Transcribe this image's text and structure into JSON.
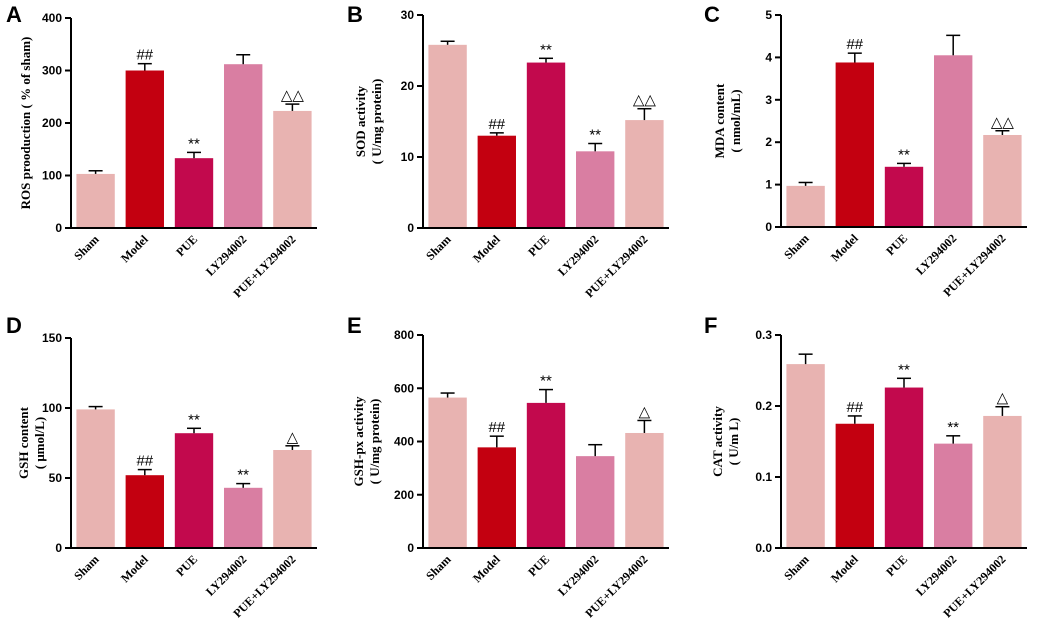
{
  "figure": {
    "categories": [
      "Sham",
      "Model",
      "PUE",
      "LY294002",
      "PUE+LY294002"
    ],
    "colors": [
      "#e8b3b1",
      "#c30010",
      "#c2094d",
      "#d97ea2",
      "#e8b3b1"
    ]
  },
  "chart_data": [
    {
      "panel": "A",
      "type": "bar",
      "ylabel": [
        "ROS prooduction ( % of sham)"
      ],
      "ylim": [
        0,
        400
      ],
      "yticks": [
        0,
        100,
        200,
        300,
        400
      ],
      "values": [
        103,
        300,
        133,
        312,
        223
      ],
      "errors": [
        6,
        13,
        11,
        18,
        13
      ],
      "annotations": [
        "",
        "##",
        "**",
        "",
        "△△"
      ]
    },
    {
      "panel": "B",
      "type": "bar",
      "ylabel": [
        "SOD activity",
        "( U/mg protein)"
      ],
      "ylim": [
        0,
        30
      ],
      "yticks": [
        0,
        10,
        20,
        30
      ],
      "values": [
        25.8,
        13.0,
        23.3,
        10.8,
        15.2
      ],
      "errors": [
        0.5,
        0.4,
        0.6,
        1.1,
        1.6
      ],
      "annotations": [
        "",
        "##",
        "**",
        "**",
        "△△"
      ]
    },
    {
      "panel": "C",
      "type": "bar",
      "ylabel": [
        "MDA content",
        "( nmol/mL)"
      ],
      "ylim": [
        0,
        5
      ],
      "yticks": [
        0,
        1,
        2,
        3,
        4,
        5
      ],
      "values": [
        0.97,
        3.88,
        1.42,
        4.05,
        2.17
      ],
      "errors": [
        0.08,
        0.22,
        0.08,
        0.47,
        0.1
      ],
      "annotations": [
        "",
        "##",
        "**",
        "",
        "△△"
      ]
    },
    {
      "panel": "D",
      "type": "bar",
      "ylabel": [
        "GSH content",
        "( μmol/L)"
      ],
      "ylim": [
        0,
        150
      ],
      "yticks": [
        0,
        50,
        100,
        150
      ],
      "values": [
        99,
        52,
        82,
        43,
        70
      ],
      "errors": [
        2,
        4,
        3.5,
        3,
        3
      ],
      "annotations": [
        "",
        "##",
        "**",
        "**",
        "△"
      ]
    },
    {
      "panel": "E",
      "type": "bar",
      "ylabel": [
        "GSH-px activity",
        "( U/mg protein)"
      ],
      "ylim": [
        0,
        800
      ],
      "yticks": [
        0,
        200,
        400,
        600,
        800
      ],
      "values": [
        565,
        378,
        545,
        345,
        432
      ],
      "errors": [
        17,
        42,
        50,
        43,
        47
      ],
      "annotations": [
        "",
        "##",
        "**",
        "",
        "△"
      ]
    },
    {
      "panel": "F",
      "type": "bar",
      "ylabel": [
        "CAT activity",
        "( U/m L)"
      ],
      "ylim": [
        0,
        0.3
      ],
      "yticks": [
        "0.0",
        "0.1",
        "0.2",
        "0.3"
      ],
      "values": [
        0.259,
        0.175,
        0.226,
        0.147,
        0.186
      ],
      "errors": [
        0.014,
        0.011,
        0.013,
        0.011,
        0.013
      ],
      "annotations": [
        "",
        "##",
        "**",
        "**",
        "△"
      ]
    }
  ]
}
